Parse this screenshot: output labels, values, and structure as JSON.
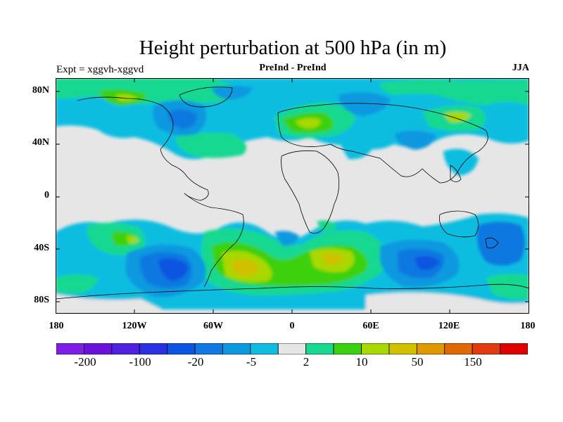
{
  "header": {
    "title": "Height perturbation at 500 hPa (in m)",
    "left": "Expt = xggvh-xggvd",
    "center": "PreInd - PreInd",
    "right": "JJA"
  },
  "axes": {
    "y_ticks": [
      "80N",
      "40N",
      "0",
      "40S",
      "80S"
    ],
    "x_ticks": [
      "180",
      "120W",
      "60W",
      "0",
      "60E",
      "120E",
      "180"
    ]
  },
  "colorbar": {
    "colors": [
      "#7f1fe6",
      "#6a12d8",
      "#4e20e0",
      "#2c30e0",
      "#0c55e0",
      "#1078e0",
      "#0e98e0",
      "#10bde0",
      "#e6e6e6",
      "#18d890",
      "#3cd010",
      "#a8d800",
      "#d0c000",
      "#e09800",
      "#e06800",
      "#e03c10",
      "#e00000"
    ],
    "labels": [
      "-200",
      "-100",
      "-20",
      "-5",
      "2",
      "10",
      "50",
      "150"
    ]
  }
}
